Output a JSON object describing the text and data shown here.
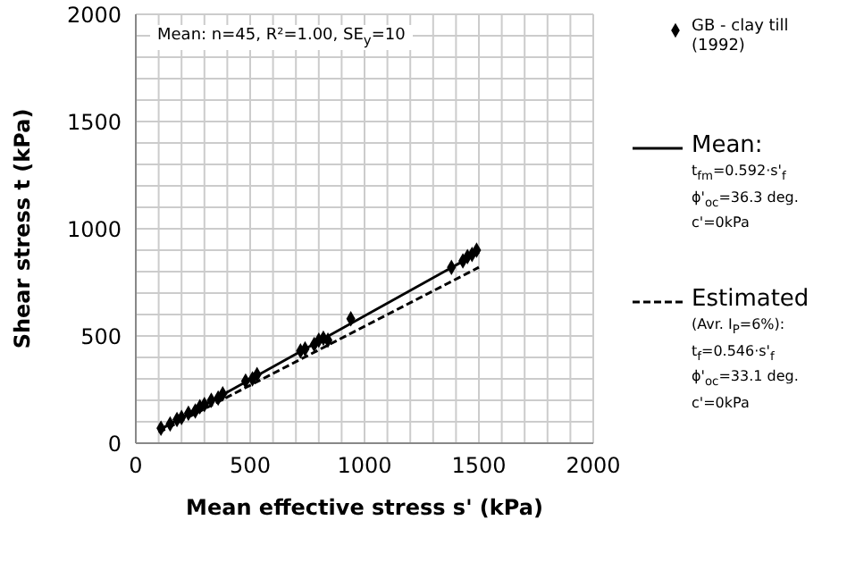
{
  "chart_data": {
    "type": "scatter",
    "xlabel": "Mean effective stress s' (kPa)",
    "ylabel": "Shear stress t (kPa)",
    "xlim": [
      0,
      2000
    ],
    "ylim": [
      0,
      2000
    ],
    "xticks": [
      0,
      {
        "value": 100,
        "label": null
      },
      {
        "value": 200,
        "label": null
      },
      {
        "value": 300,
        "label": null
      },
      {
        "value": 400,
        "label": null
      },
      500,
      {
        "value": 600,
        "label": null
      },
      {
        "value": 700,
        "label": null
      },
      {
        "value": 800,
        "label": null
      },
      {
        "value": 900,
        "label": null
      },
      1000,
      {
        "value": 1100,
        "label": null
      },
      {
        "value": 1200,
        "label": null
      },
      {
        "value": 1300,
        "label": null
      },
      {
        "value": 1400,
        "label": null
      },
      1500,
      {
        "value": 1600,
        "label": null
      },
      {
        "value": 1700,
        "label": null
      },
      {
        "value": 1800,
        "label": null
      },
      {
        "value": 1900,
        "label": null
      },
      2000
    ],
    "yticks": [
      0,
      {
        "value": 100,
        "label": null
      },
      {
        "value": 200,
        "label": null
      },
      {
        "value": 300,
        "label": null
      },
      {
        "value": 400,
        "label": null
      },
      500,
      {
        "value": 600,
        "label": null
      },
      {
        "value": 700,
        "label": null
      },
      {
        "value": 800,
        "label": null
      },
      {
        "value": 900,
        "label": null
      },
      1000,
      {
        "value": 1100,
        "label": null
      },
      {
        "value": 1200,
        "label": null
      },
      {
        "value": 1300,
        "label": null
      },
      {
        "value": 1400,
        "label": null
      },
      1500,
      {
        "value": 1600,
        "label": null
      },
      {
        "value": 1700,
        "label": null
      },
      {
        "value": 1800,
        "label": null
      },
      {
        "value": 1900,
        "label": null
      },
      2000
    ],
    "grid": true,
    "legend": "right",
    "series": [
      {
        "name": "GB - clay till (1992)",
        "marker": "diamond",
        "color": "#000000",
        "x": [
          110,
          150,
          180,
          200,
          230,
          260,
          280,
          300,
          330,
          360,
          380,
          480,
          510,
          530,
          720,
          740,
          780,
          800,
          820,
          840,
          940,
          1380,
          1430,
          1450,
          1470,
          1490
        ],
        "values": [
          70,
          90,
          110,
          120,
          140,
          150,
          170,
          180,
          200,
          210,
          230,
          290,
          300,
          320,
          430,
          440,
          460,
          480,
          490,
          480,
          580,
          820,
          850,
          870,
          880,
          900
        ]
      },
      {
        "name": "Mean:",
        "type": "line",
        "line_style": "solid",
        "color": "#000000",
        "x": [
          100,
          1500
        ],
        "values": [
          60,
          890
        ]
      },
      {
        "name": "Estimated",
        "type": "line",
        "line_style": "dashed",
        "color": "#000000",
        "x": [
          100,
          1500
        ],
        "values": [
          50,
          820
        ]
      }
    ],
    "annotations": [
      "Mean: n=45, R²=1.00, SE$_{y}$=10",
      "t$_{fm}$=0.592·s'$_{f}$",
      "ϕ'$_{oc}$=36.3 deg.",
      "c'=0kPa",
      "(Avr. I$_{P}$=6%):",
      "t$_{f}$=0.546·s'$_{f}$",
      "ϕ'$_{oc}$=33.1 deg.",
      "c'=0kPa"
    ]
  }
}
